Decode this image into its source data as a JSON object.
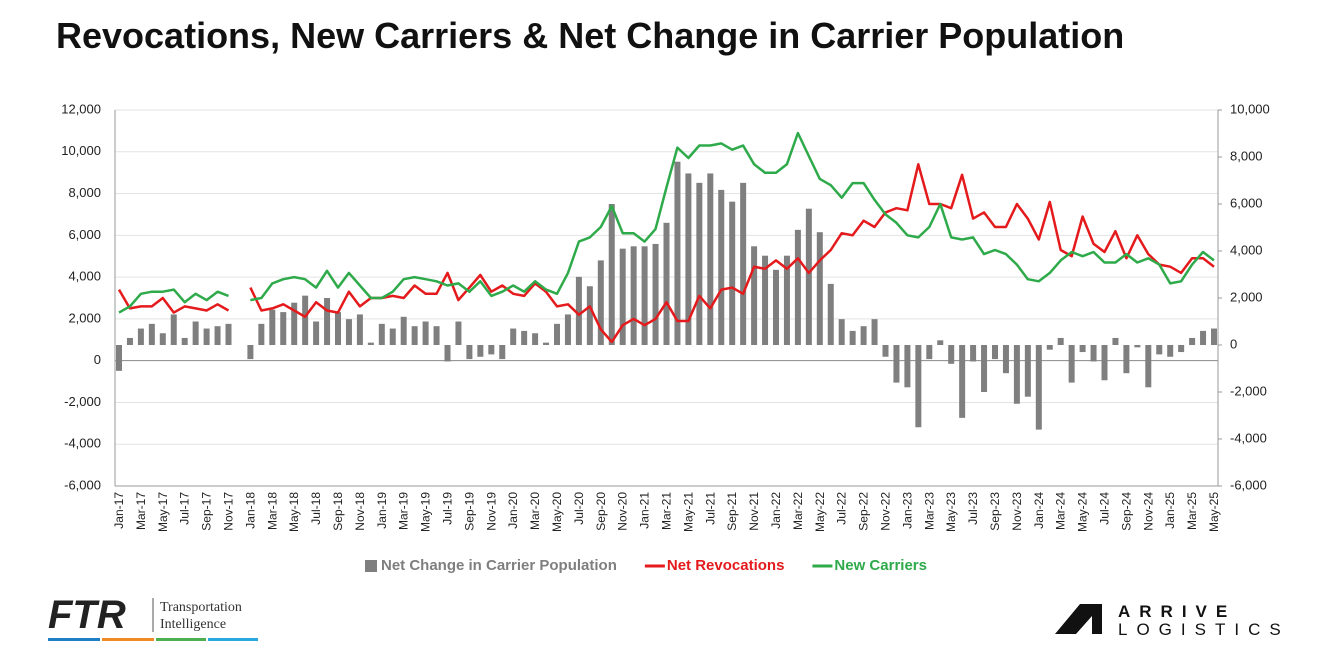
{
  "chart_data": {
    "type": "bar_line",
    "title": "Revocations, New Carriers & Net Change in Carrier Population",
    "categories": [
      "Jan-17",
      null,
      "Mar-17",
      null,
      "May-17",
      null,
      "Jul-17",
      null,
      "Sep-17",
      null,
      "Nov-17",
      null,
      "Jan-18",
      null,
      "Mar-18",
      null,
      "May-18",
      null,
      "Jul-18",
      null,
      "Sep-18",
      null,
      "Nov-18",
      null,
      "Jan-19",
      null,
      "Mar-19",
      null,
      "May-19",
      null,
      "Jul-19",
      null,
      "Sep-19",
      null,
      "Nov-19",
      null,
      "Jan-20",
      null,
      "Mar-20",
      null,
      "May-20",
      null,
      "Jul-20",
      null,
      "Sep-20",
      null,
      "Nov-20",
      null,
      "Jan-21",
      null,
      "Mar-21",
      null,
      "May-21",
      null,
      "Jul-21",
      null,
      "Sep-21",
      null,
      "Nov-21",
      null,
      "Jan-22",
      null,
      "Mar-22",
      null,
      "May-22",
      null,
      "Jul-22",
      null,
      "Sep-22",
      null,
      "Nov-22",
      null,
      "Jan-23",
      null,
      "Mar-23",
      null,
      "May-23",
      null,
      "Jul-23",
      null,
      "Sep-23",
      null,
      "Nov-23",
      null,
      "Jan-24",
      null,
      "Mar-24",
      null,
      "May-24",
      null,
      "Jul-24",
      null,
      "Sep-24",
      null,
      "Nov-24",
      null,
      "Jan-25",
      null,
      "Mar-25",
      null,
      "May-25"
    ],
    "series": [
      {
        "name": "Net Change in Carrier Population",
        "kind": "bar",
        "axis": "y2",
        "color": "#7f7f7f",
        "values": [
          -1100,
          300,
          700,
          900,
          500,
          1300,
          300,
          1000,
          700,
          800,
          900,
          null,
          -600,
          900,
          1500,
          1400,
          1800,
          2100,
          1000,
          2000,
          1400,
          1100,
          1300,
          100,
          900,
          700,
          1200,
          800,
          1000,
          800,
          -700,
          1000,
          -600,
          -500,
          -400,
          -600,
          700,
          600,
          500,
          100,
          900,
          1300,
          2900,
          2500,
          3600,
          6000,
          4100,
          4200,
          4200,
          4300,
          5200,
          7800,
          7300,
          6900,
          7300,
          6600,
          6100,
          6900,
          4200,
          3800,
          3200,
          3800,
          4900,
          5800,
          4800,
          2600,
          1100,
          600,
          800,
          1100,
          -500,
          -1600,
          -1800,
          -3500,
          -600,
          200,
          -800,
          -3100,
          -700,
          -2000,
          -600,
          -1200,
          -2500,
          -2200,
          -3600,
          -200,
          300,
          -1600,
          -300,
          -700,
          -1500,
          300,
          -1200,
          -100,
          -1800,
          -400,
          -500,
          -300,
          300,
          600,
          700
        ]
      },
      {
        "name": "Net Revocations",
        "kind": "line",
        "axis": "y",
        "color": "#e41a1c",
        "values": [
          3400,
          2500,
          2600,
          2600,
          3000,
          2300,
          2600,
          2500,
          2400,
          2700,
          2400,
          null,
          3500,
          2400,
          2500,
          2700,
          2400,
          2100,
          2800,
          2400,
          2300,
          3300,
          2600,
          3000,
          3000,
          3100,
          3000,
          3600,
          3200,
          3200,
          4200,
          2900,
          3500,
          4100,
          3300,
          3600,
          3200,
          3100,
          3700,
          3300,
          2600,
          2700,
          2200,
          2600,
          1500,
          900,
          1700,
          2000,
          1700,
          2000,
          2800,
          1900,
          1900,
          3100,
          2500,
          3400,
          3500,
          3200,
          4500,
          4400,
          4800,
          4400,
          4900,
          4200,
          4800,
          5300,
          6100,
          6000,
          6700,
          6400,
          7100,
          7300,
          7200,
          9400,
          7500,
          7500,
          7300,
          8900,
          6800,
          7100,
          6400,
          6400,
          7500,
          6800,
          5800,
          7600,
          5300,
          5000,
          6900,
          5600,
          5200,
          6200,
          4900,
          6000,
          5100,
          4600,
          4500,
          4200,
          4900,
          4900,
          4500
        ]
      },
      {
        "name": "New Carriers",
        "kind": "line",
        "axis": "y",
        "color": "#2eaa4a",
        "values": [
          2300,
          2600,
          3200,
          3300,
          3300,
          3400,
          2800,
          3200,
          2900,
          3300,
          3100,
          null,
          2900,
          3000,
          3700,
          3900,
          4000,
          3900,
          3500,
          4300,
          3500,
          4200,
          3600,
          3000,
          3000,
          3300,
          3900,
          4000,
          3900,
          3800,
          3600,
          3700,
          3300,
          3800,
          3100,
          3300,
          3600,
          3300,
          3800,
          3400,
          3200,
          4200,
          5700,
          5900,
          6400,
          7400,
          6100,
          6100,
          5700,
          6300,
          8300,
          10200,
          9700,
          10300,
          10300,
          10400,
          10100,
          10300,
          9400,
          9000,
          9000,
          9400,
          10900,
          9800,
          8700,
          8400,
          7800,
          8500,
          8500,
          7700,
          7000,
          6600,
          6000,
          5900,
          6400,
          7500,
          5900,
          5800,
          5900,
          5100,
          5300,
          5100,
          4600,
          3900,
          3800,
          4200,
          4800,
          5200,
          5000,
          5200,
          4700,
          4700,
          5100,
          4700,
          4900,
          4600,
          3700,
          3800,
          4600,
          5200,
          4800
        ]
      }
    ],
    "ylim": [
      -6000,
      12000
    ],
    "yticks": [
      {
        "value": -6000,
        "label": "-6,000"
      },
      {
        "value": -4000,
        "label": "-4,000"
      },
      {
        "value": -2000,
        "label": "-2,000"
      },
      0,
      {
        "value": 2000,
        "label": "2,000"
      },
      {
        "value": 4000,
        "label": "4,000"
      },
      {
        "value": 6000,
        "label": "6,000"
      },
      {
        "value": 8000,
        "label": "8,000"
      },
      {
        "value": 10000,
        "label": "10,000"
      },
      {
        "value": 12000,
        "label": "12,000"
      }
    ],
    "y2lim": [
      -6000,
      10000
    ],
    "y2ticks": [
      {
        "value": -6000,
        "label": "-6,000"
      },
      {
        "value": -4000,
        "label": "-4,000"
      },
      {
        "value": -2000,
        "label": "-2,000"
      },
      0,
      {
        "value": 2000,
        "label": "2,000"
      },
      {
        "value": 4000,
        "label": "4,000"
      },
      {
        "value": 6000,
        "label": "6,000"
      },
      {
        "value": 8000,
        "label": "8,000"
      },
      {
        "value": 10000,
        "label": "10,000"
      }
    ],
    "grid": true,
    "legend": "bottom"
  },
  "footer": {
    "left_logo": "FTR",
    "left_tagline": [
      "Transportation",
      "Intelligence"
    ],
    "right_logo": [
      "ARRIVE",
      "LOGISTICS"
    ]
  }
}
